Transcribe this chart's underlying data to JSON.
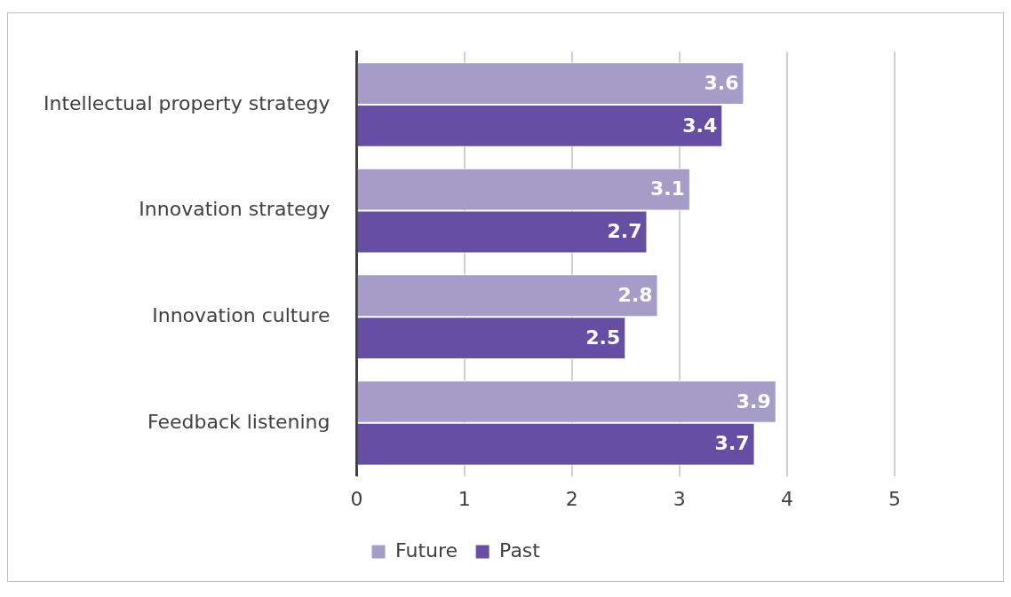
{
  "chart_data": {
    "type": "bar",
    "orientation": "horizontal",
    "categories": [
      "Intellectual property strategy",
      "Innovation strategy",
      "Innovation culture",
      "Feedback listening"
    ],
    "series": [
      {
        "name": "Future",
        "color": "#a59dc8",
        "values": [
          3.6,
          3.1,
          2.8,
          3.9
        ]
      },
      {
        "name": "Past",
        "color": "#654ea3",
        "values": [
          3.4,
          2.7,
          2.5,
          3.7
        ]
      }
    ],
    "xlim": [
      0,
      5
    ],
    "xticks": [
      0,
      1,
      2,
      3,
      4,
      5
    ],
    "grid": "x",
    "legend": "bottom",
    "data_labels": true
  }
}
